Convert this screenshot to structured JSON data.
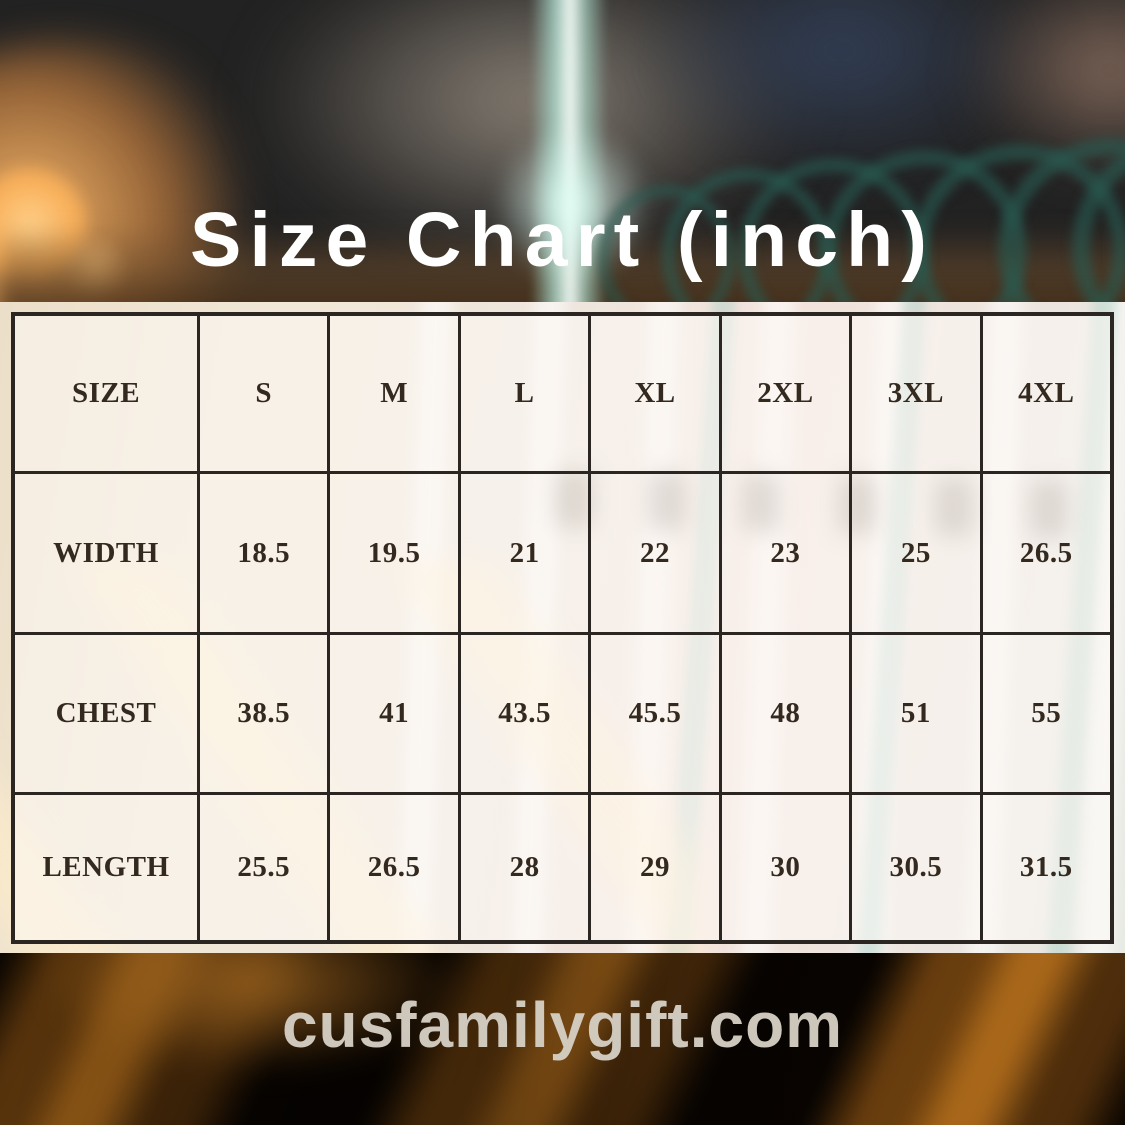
{
  "title": "Size Chart (inch)",
  "footer": {
    "website": "cusfamilygift.com"
  },
  "colors": {
    "title_text": "#ffffff",
    "table_text": "#33291f",
    "table_border": "#2b2621",
    "table_cell_bg": "#fbf7f1",
    "footer_text": "#d7d1c6",
    "bottom_fabric": "#8a5512",
    "hanger_teal": "#2d5c53"
  },
  "chart_data": {
    "type": "table",
    "title": "Size Chart (inch)",
    "unit": "inch",
    "columns": [
      "SIZE",
      "S",
      "M",
      "L",
      "XL",
      "2XL",
      "3XL",
      "4XL"
    ],
    "rows": [
      [
        "WIDTH",
        "18.5",
        "19.5",
        "21",
        "22",
        "23",
        "25",
        "26.5"
      ],
      [
        "CHEST",
        "38.5",
        "41",
        "43.5",
        "45.5",
        "48",
        "51",
        "55"
      ],
      [
        "LENGTH",
        "25.5",
        "26.5",
        "28",
        "29",
        "30",
        "30.5",
        "31.5"
      ]
    ]
  }
}
